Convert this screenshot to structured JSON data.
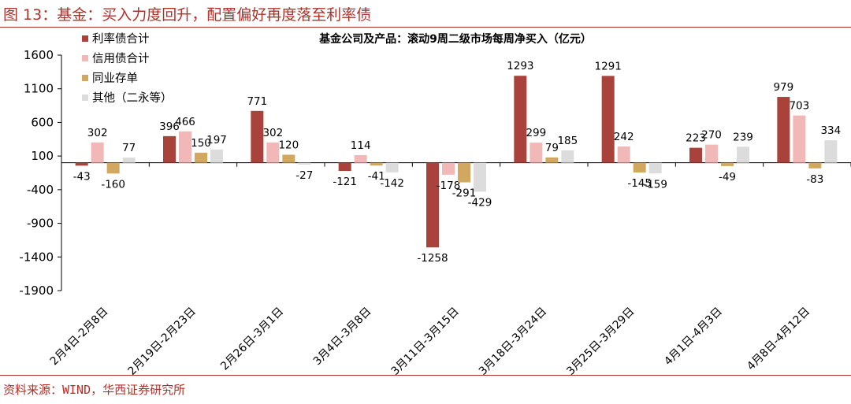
{
  "figure_title": "图 13：基金：买入力度回升，配置偏好再度落至利率债",
  "source_note": "资料来源：WIND，华西证券研究所",
  "colors": {
    "accent": "#b0302a",
    "series": [
      "#a8423a",
      "#f2b8b8",
      "#d2a860",
      "#dcdcdc"
    ]
  },
  "chart_data": {
    "type": "bar",
    "title": "基金公司及产品：滚动9周二级市场每周净买入（亿元）",
    "xlabel": "",
    "ylabel": "",
    "ylim": [
      -1900,
      1600
    ],
    "yticks": [
      1600,
      1100,
      600,
      100,
      -400,
      -900,
      -1400,
      -1900
    ],
    "legend_position": "top-left",
    "categories": [
      "2月4日-2月8日",
      "2月19日-2月23日",
      "2月26日-3月1日",
      "3月4日-3月8日",
      "3月11日-3月15日",
      "3月18日-3月24日",
      "3月25日-3月29日",
      "4月1日-4月3日",
      "4月8日-4月12日"
    ],
    "series": [
      {
        "name": "利率债合计",
        "values": [
          -43,
          396,
          771,
          -121,
          -1258,
          1293,
          1291,
          223,
          979
        ]
      },
      {
        "name": "信用债合计",
        "values": [
          302,
          466,
          302,
          114,
          -178,
          299,
          242,
          270,
          703
        ]
      },
      {
        "name": "同业存单",
        "values": [
          -160,
          150,
          120,
          -41,
          -291,
          79,
          -145,
          -49,
          -83
        ]
      },
      {
        "name": "其他（二永等）",
        "values": [
          77,
          197,
          -27,
          -142,
          -429,
          185,
          -159,
          239,
          334
        ]
      }
    ]
  }
}
